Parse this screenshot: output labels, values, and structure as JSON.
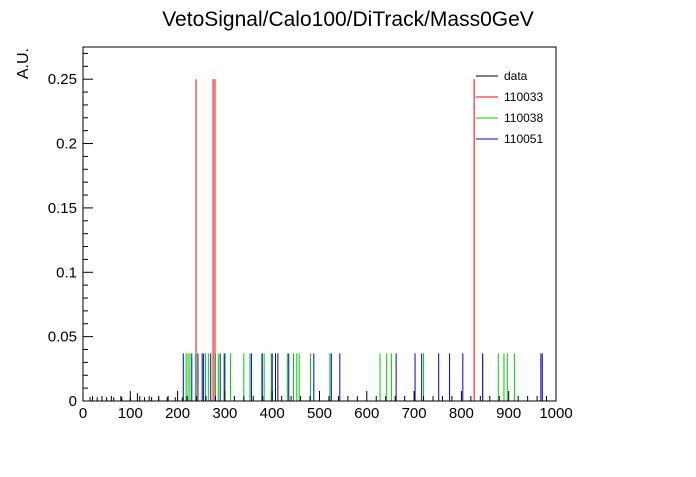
{
  "chart_data": {
    "type": "histogram",
    "title": "VetoSignal/Calo100/DiTrack/Mass0GeV",
    "xlabel": "",
    "ylabel": "A.U.",
    "xlim": [
      0,
      1000
    ],
    "ylim": [
      0,
      0.275
    ],
    "x_ticks": [
      "0",
      "100",
      "200",
      "300",
      "400",
      "500",
      "600",
      "700",
      "800",
      "900",
      "1000"
    ],
    "y_ticks": [
      "0",
      "0.05",
      "0.1",
      "0.15",
      "0.2",
      "0.25"
    ],
    "grid": false,
    "legend_position": "top-right",
    "series": [
      {
        "name": "data",
        "color": "#000000",
        "x": [
          15,
          30,
          50,
          65,
          82,
          100,
          115,
          130,
          145,
          160,
          178,
          195,
          210
        ],
        "values": [
          0.003,
          0.003,
          0.003,
          0.003,
          0.003,
          0.003,
          0.006,
          0.003,
          0.003,
          0.003,
          0.003,
          0.003,
          0.003
        ]
      },
      {
        "name": "110033",
        "color": "#ff0000",
        "x": [
          239,
          275,
          279,
          827
        ],
        "values": [
          0.25,
          0.25,
          0.25,
          0.25
        ]
      },
      {
        "name": "110038",
        "color": "#00cc00",
        "x": [
          218,
          222,
          226,
          238,
          259,
          265,
          280,
          286,
          298,
          312,
          340,
          353,
          378,
          383,
          398,
          432,
          445,
          452,
          457,
          481,
          522,
          628,
          642,
          652,
          720,
          845,
          878,
          890,
          897,
          912
        ],
        "values": [
          0.037,
          0.037,
          0.037,
          0.037,
          0.037,
          0.037,
          0.037,
          0.037,
          0.037,
          0.037,
          0.037,
          0.037,
          0.037,
          0.037,
          0.037,
          0.037,
          0.037,
          0.037,
          0.037,
          0.037,
          0.037,
          0.037,
          0.037,
          0.037,
          0.037,
          0.037,
          0.037,
          0.037,
          0.037,
          0.037
        ]
      },
      {
        "name": "110051",
        "color": "#0000cc",
        "x": [
          212,
          230,
          243,
          252,
          255,
          270,
          290,
          300,
          356,
          379,
          400,
          407,
          412,
          435,
          488,
          525,
          543,
          662,
          702,
          716,
          752,
          775,
          803,
          845,
          968,
          971
        ],
        "values": [
          0.037,
          0.037,
          0.037,
          0.037,
          0.037,
          0.037,
          0.037,
          0.037,
          0.037,
          0.037,
          0.037,
          0.037,
          0.037,
          0.037,
          0.037,
          0.037,
          0.037,
          0.037,
          0.037,
          0.037,
          0.037,
          0.037,
          0.037,
          0.037,
          0.037,
          0.037
        ]
      }
    ]
  }
}
